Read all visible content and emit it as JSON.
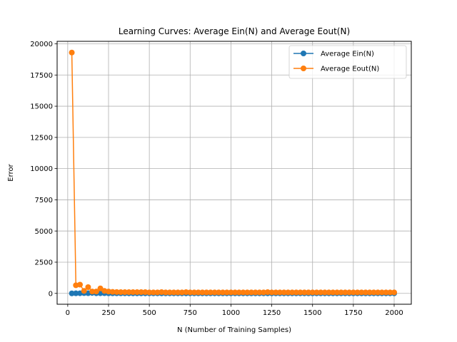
{
  "chart_data": {
    "type": "line",
    "title": "Learning Curves: Average Ein(N) and Average Eout(N)",
    "xlabel": "N (Number of Training Samples)",
    "ylabel": "Error",
    "xlim": [
      -65,
      2105
    ],
    "ylim": [
      -870,
      20200
    ],
    "xticks": [
      0,
      250,
      500,
      750,
      1000,
      1250,
      1500,
      1750,
      2000
    ],
    "yticks": [
      0,
      2500,
      5000,
      7500,
      10000,
      12500,
      15000,
      17500,
      20000
    ],
    "grid": true,
    "legend_position": "top-right",
    "x_step": 25,
    "x_start": 25,
    "x_end": 2000,
    "series": [
      {
        "name": "Average Ein(N)",
        "color": "#1f77b4",
        "values": [
          0,
          5,
          10,
          20,
          15,
          40,
          10,
          10,
          15,
          8,
          5,
          5,
          5,
          5,
          4,
          4,
          4,
          4,
          4,
          4,
          3,
          3,
          3,
          3,
          3,
          3,
          3,
          3,
          3,
          3,
          3,
          3,
          3,
          3,
          3,
          3,
          3,
          3,
          3,
          3,
          3,
          3,
          3,
          3,
          3,
          3,
          3,
          3,
          3,
          3,
          3,
          3,
          3,
          3,
          3,
          3,
          3,
          3,
          3,
          3,
          3,
          3,
          3,
          3,
          3,
          3,
          3,
          3,
          3,
          3,
          3,
          3,
          3,
          3,
          3,
          3,
          3,
          3,
          3,
          3
        ]
      },
      {
        "name": "Average Eout(N)",
        "color": "#ff7f0e",
        "values": [
          19300,
          650,
          700,
          200,
          500,
          150,
          150,
          400,
          200,
          150,
          120,
          110,
          100,
          100,
          100,
          100,
          100,
          100,
          100,
          80,
          80,
          80,
          100,
          80,
          80,
          80,
          80,
          80,
          100,
          80,
          80,
          80,
          80,
          80,
          80,
          80,
          80,
          80,
          80,
          80,
          80,
          80,
          80,
          80,
          80,
          80,
          80,
          80,
          100,
          80,
          80,
          80,
          80,
          80,
          80,
          80,
          80,
          80,
          80,
          80,
          80,
          80,
          80,
          80,
          80,
          80,
          80,
          80,
          80,
          80,
          80,
          80,
          80,
          80,
          80,
          80,
          80,
          80,
          80,
          80
        ]
      }
    ]
  }
}
